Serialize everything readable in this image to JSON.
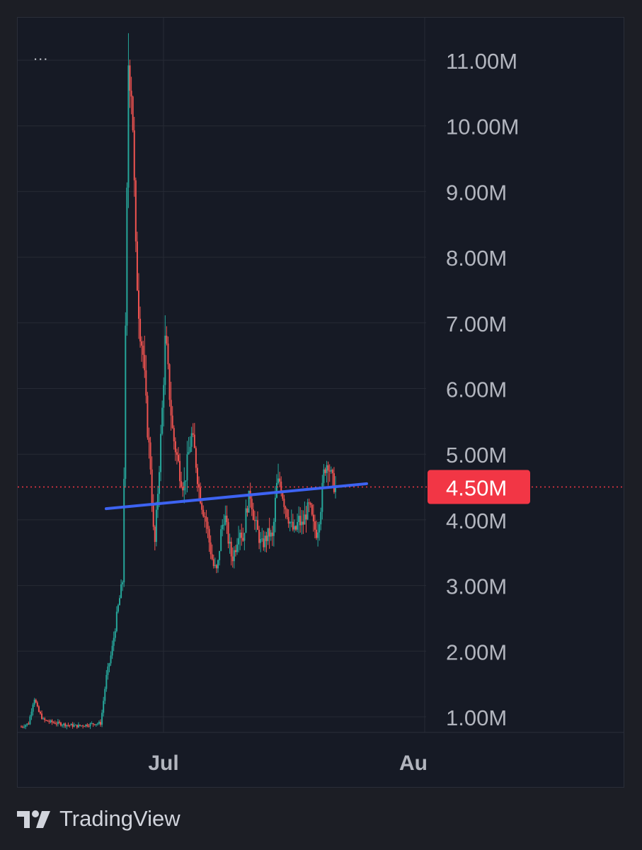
{
  "toolbar": {
    "menu_label": "..."
  },
  "brand": {
    "name": "TradingView",
    "logo_icon": "tradingview-logo-icon"
  },
  "colors": {
    "background": "#161a25",
    "grid": "#262a35",
    "axis_text": "#b2b5be",
    "up": "#26a69a",
    "down": "#ef5350",
    "trendline": "#3d63f2",
    "price_label": "#f23645"
  },
  "chart_data": {
    "type": "candlestick",
    "y_unit": "M",
    "ylim": [
      0.8,
      11.6
    ],
    "y_ticks": [
      {
        "value": 1,
        "label": "1.00M"
      },
      {
        "value": 2,
        "label": "2.00M"
      },
      {
        "value": 3,
        "label": "3.00M"
      },
      {
        "value": 4,
        "label": "4.00M"
      },
      {
        "value": 5,
        "label": "5.00M"
      },
      {
        "value": 6,
        "label": "6.00M"
      },
      {
        "value": 7,
        "label": "7.00M"
      },
      {
        "value": 8,
        "label": "8.00M"
      },
      {
        "value": 9,
        "label": "9.00M"
      },
      {
        "value": 10,
        "label": "10.00M"
      },
      {
        "value": 11,
        "label": "11.00M"
      }
    ],
    "x_ticks": [
      {
        "date": "Jul",
        "label": "Jul"
      },
      {
        "date": "Aug",
        "label": "Au"
      }
    ],
    "current_price": {
      "value": 4.5,
      "label": "4.50M"
    },
    "trendline": {
      "start": 4.17,
      "end": 4.55
    },
    "price_path": [
      [
        0.0,
        0.85
      ],
      [
        0.02,
        0.9
      ],
      [
        0.035,
        1.3
      ],
      [
        0.045,
        1.1
      ],
      [
        0.06,
        0.95
      ],
      [
        0.08,
        0.92
      ],
      [
        0.1,
        0.9
      ],
      [
        0.12,
        0.88
      ],
      [
        0.15,
        0.86
      ],
      [
        0.18,
        0.88
      ],
      [
        0.2,
        0.9
      ],
      [
        0.215,
        0.9
      ],
      [
        0.23,
        1.6
      ],
      [
        0.245,
        2.0
      ],
      [
        0.26,
        2.6
      ],
      [
        0.275,
        3.1
      ],
      [
        0.29,
        11.0
      ],
      [
        0.3,
        10.5
      ],
      [
        0.31,
        8.0
      ],
      [
        0.32,
        7.0
      ],
      [
        0.33,
        6.5
      ],
      [
        0.34,
        5.5
      ],
      [
        0.35,
        4.8
      ],
      [
        0.36,
        3.5
      ],
      [
        0.37,
        4.5
      ],
      [
        0.38,
        5.5
      ],
      [
        0.39,
        6.8
      ],
      [
        0.4,
        6.0
      ],
      [
        0.41,
        5.3
      ],
      [
        0.42,
        5.0
      ],
      [
        0.43,
        4.7
      ],
      [
        0.44,
        4.5
      ],
      [
        0.45,
        4.9
      ],
      [
        0.46,
        5.3
      ],
      [
        0.47,
        5.0
      ],
      [
        0.48,
        4.5
      ],
      [
        0.49,
        4.2
      ],
      [
        0.5,
        4.0
      ],
      [
        0.51,
        3.6
      ],
      [
        0.52,
        3.3
      ],
      [
        0.53,
        3.2
      ],
      [
        0.54,
        3.8
      ],
      [
        0.55,
        4.1
      ],
      [
        0.56,
        3.7
      ],
      [
        0.57,
        3.4
      ],
      [
        0.58,
        3.6
      ],
      [
        0.59,
        3.9
      ],
      [
        0.6,
        3.7
      ],
      [
        0.61,
        4.2
      ],
      [
        0.62,
        4.4
      ],
      [
        0.63,
        4.0
      ],
      [
        0.64,
        3.8
      ],
      [
        0.65,
        3.6
      ],
      [
        0.66,
        3.7
      ],
      [
        0.67,
        3.8
      ],
      [
        0.68,
        3.7
      ],
      [
        0.69,
        4.5
      ],
      [
        0.7,
        4.6
      ],
      [
        0.71,
        4.3
      ],
      [
        0.72,
        4.1
      ],
      [
        0.73,
        3.9
      ],
      [
        0.74,
        3.8
      ],
      [
        0.75,
        4.0
      ],
      [
        0.76,
        3.9
      ],
      [
        0.77,
        4.1
      ],
      [
        0.78,
        4.2
      ],
      [
        0.79,
        3.9
      ],
      [
        0.8,
        3.8
      ],
      [
        0.81,
        4.2
      ],
      [
        0.82,
        4.8
      ],
      [
        0.83,
        4.9
      ],
      [
        0.84,
        4.6
      ],
      [
        0.85,
        4.5
      ]
    ]
  }
}
